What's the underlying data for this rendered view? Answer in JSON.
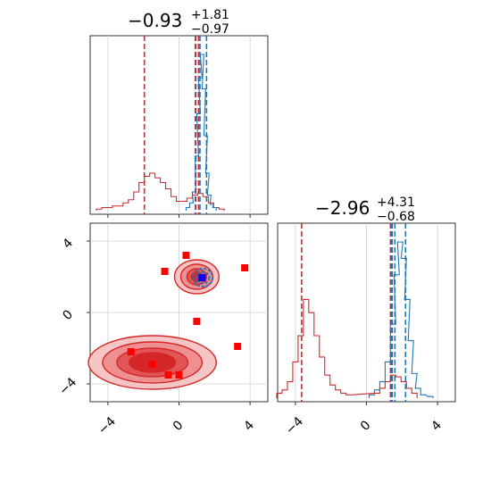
{
  "chart_data": [
    {
      "type": "histogram",
      "panel": "top-left",
      "title": {
        "value": "−0.93",
        "plus": "+1.81",
        "minus": "−0.97"
      },
      "xlim": [
        -5,
        5
      ],
      "grid": true,
      "series": [
        {
          "color": "#d62728",
          "bins": [
            [
              -4.5,
              0.01
            ],
            [
              -4.2,
              0.02
            ],
            [
              -3.9,
              0.02
            ],
            [
              -3.6,
              0.03
            ],
            [
              -3.3,
              0.03
            ],
            [
              -3.0,
              0.05
            ],
            [
              -2.7,
              0.07
            ],
            [
              -2.4,
              0.12
            ],
            [
              -2.1,
              0.18
            ],
            [
              -1.8,
              0.22
            ],
            [
              -1.5,
              0.24
            ],
            [
              -1.2,
              0.21
            ],
            [
              -0.9,
              0.18
            ],
            [
              -0.6,
              0.14
            ],
            [
              -0.3,
              0.09
            ],
            [
              0.0,
              0.06
            ],
            [
              0.3,
              0.06
            ],
            [
              0.6,
              0.08
            ],
            [
              0.9,
              0.1
            ],
            [
              1.2,
              0.11
            ],
            [
              1.5,
              0.09
            ],
            [
              1.8,
              0.05
            ],
            [
              2.1,
              0.02
            ],
            [
              2.4,
              0.01
            ]
          ],
          "quantile_lines": [
            -1.95,
            0.92,
            1.1
          ]
        },
        {
          "color": "#1f77b4",
          "bins": [
            [
              0.5,
              0.02
            ],
            [
              0.7,
              0.05
            ],
            [
              0.85,
              0.12
            ],
            [
              1.0,
              0.35
            ],
            [
              1.1,
              0.62
            ],
            [
              1.2,
              0.85
            ],
            [
              1.3,
              1.0
            ],
            [
              1.4,
              0.78
            ],
            [
              1.5,
              0.48
            ],
            [
              1.6,
              0.24
            ],
            [
              1.7,
              0.1
            ],
            [
              1.85,
              0.04
            ],
            [
              2.0,
              0.02
            ]
          ],
          "quantile_lines": [
            0.95,
            1.18,
            1.55
          ]
        }
      ]
    },
    {
      "type": "histogram",
      "panel": "bottom-right",
      "title": {
        "value": "−2.96",
        "plus": "+4.31",
        "minus": "−0.68"
      },
      "xlim": [
        -5,
        5
      ],
      "xticks": [
        "−4",
        "0",
        "4"
      ],
      "grid": true,
      "series": [
        {
          "color": "#d62728",
          "bins": [
            [
              -4.9,
              0.03
            ],
            [
              -4.6,
              0.05
            ],
            [
              -4.3,
              0.1
            ],
            [
              -4.0,
              0.22
            ],
            [
              -3.7,
              0.38
            ],
            [
              -3.4,
              0.6
            ],
            [
              -3.1,
              0.52
            ],
            [
              -2.8,
              0.38
            ],
            [
              -2.5,
              0.25
            ],
            [
              -2.2,
              0.14
            ],
            [
              -1.9,
              0.08
            ],
            [
              -1.6,
              0.05
            ],
            [
              -1.3,
              0.03
            ],
            [
              -1.0,
              0.02
            ],
            [
              0.6,
              0.03
            ],
            [
              0.9,
              0.06
            ],
            [
              1.2,
              0.1
            ],
            [
              1.5,
              0.14
            ],
            [
              1.8,
              0.13
            ],
            [
              2.1,
              0.1
            ],
            [
              2.4,
              0.06
            ],
            [
              2.7,
              0.03
            ]
          ],
          "quantile_lines": [
            -3.65,
            1.35,
            1.45
          ]
        },
        {
          "color": "#1f77b4",
          "bins": [
            [
              0.3,
              0.02
            ],
            [
              0.6,
              0.05
            ],
            [
              0.9,
              0.1
            ],
            [
              1.2,
              0.22
            ],
            [
              1.5,
              0.45
            ],
            [
              1.7,
              0.75
            ],
            [
              1.9,
              0.95
            ],
            [
              2.1,
              0.85
            ],
            [
              2.3,
              0.6
            ],
            [
              2.5,
              0.35
            ],
            [
              2.7,
              0.15
            ],
            [
              2.9,
              0.06
            ],
            [
              3.2,
              0.02
            ],
            [
              3.6,
              0.01
            ]
          ],
          "quantile_lines": [
            1.4,
            1.6,
            2.2
          ]
        }
      ]
    },
    {
      "type": "scatter-contour",
      "panel": "bottom-left",
      "xlim": [
        -5,
        5
      ],
      "ylim": [
        -5,
        5
      ],
      "xticks": [
        "−4",
        "0",
        "4"
      ],
      "yticks": [
        "4",
        "0",
        "−4"
      ],
      "grid": true,
      "contours": [
        {
          "color": "#d62728",
          "center": [
            1.0,
            2.0
          ],
          "radii": [
            [
              1.25,
              0.95
            ],
            [
              0.9,
              0.7
            ],
            [
              0.55,
              0.45
            ],
            [
              0.3,
              0.25
            ]
          ]
        },
        {
          "color": "#d62728",
          "center": [
            -1.5,
            -2.8
          ],
          "radii": [
            [
              3.6,
              1.5
            ],
            [
              2.8,
              1.15
            ],
            [
              2.0,
              0.8
            ],
            [
              1.3,
              0.55
            ]
          ]
        },
        {
          "color": "#1f77b4",
          "center": [
            1.35,
            1.95
          ],
          "radii": [
            [
              0.55,
              0.5
            ],
            [
              0.35,
              0.32
            ]
          ]
        }
      ],
      "red_squares": [
        [
          -2.7,
          -2.2
        ],
        [
          -1.5,
          -2.9
        ],
        [
          -0.6,
          -3.5
        ],
        [
          0.0,
          -3.5
        ],
        [
          -0.8,
          2.3
        ],
        [
          0.4,
          3.2
        ],
        [
          3.7,
          2.5
        ],
        [
          1.0,
          -0.5
        ],
        [
          3.3,
          -1.9
        ]
      ],
      "blue_square": [
        1.3,
        1.95
      ]
    }
  ]
}
